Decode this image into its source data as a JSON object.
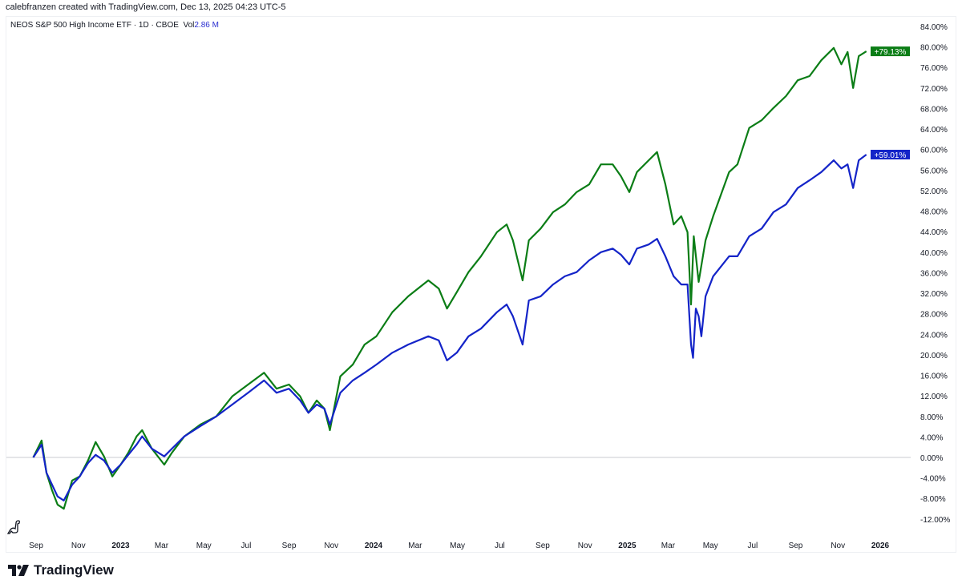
{
  "header": {
    "credit": "calebfranzen created with TradingView.com, Dec 13, 2025 04:23 UTC-5",
    "symbol_line": "NEOS S&P 500 High Income ETF · 1D · CBOE",
    "vol_label": "Vol",
    "vol_value": "2.86 M"
  },
  "footer": {
    "brand": "TradingView"
  },
  "icons": {
    "dino": "dinosaur-icon",
    "logo": "tradingview-logo"
  },
  "chart_data": {
    "type": "line",
    "title": "",
    "xlabel": "",
    "ylabel": "",
    "ylim": [
      -14,
      86
    ],
    "grid": false,
    "y_ticks": [
      "84.00%",
      "80.00%",
      "76.00%",
      "72.00%",
      "68.00%",
      "64.00%",
      "60.00%",
      "56.00%",
      "52.00%",
      "48.00%",
      "44.00%",
      "40.00%",
      "36.00%",
      "32.00%",
      "28.00%",
      "24.00%",
      "20.00%",
      "16.00%",
      "12.00%",
      "8.00%",
      "4.00%",
      "0.00%",
      "-4.00%",
      "-8.00%",
      "-12.00%"
    ],
    "y_tick_values": [
      84,
      80,
      76,
      72,
      68,
      64,
      60,
      56,
      52,
      48,
      44,
      40,
      36,
      32,
      28,
      24,
      20,
      16,
      12,
      8,
      4,
      0,
      -4,
      -8,
      -12
    ],
    "x_ticks": [
      {
        "label": "Sep",
        "date": "2022-09-01",
        "bold": false
      },
      {
        "label": "Nov",
        "date": "2022-11-01",
        "bold": false
      },
      {
        "label": "2023",
        "date": "2023-01-01",
        "bold": true
      },
      {
        "label": "Mar",
        "date": "2023-03-01",
        "bold": false
      },
      {
        "label": "May",
        "date": "2023-05-01",
        "bold": false
      },
      {
        "label": "Jul",
        "date": "2023-07-01",
        "bold": false
      },
      {
        "label": "Sep",
        "date": "2023-09-01",
        "bold": false
      },
      {
        "label": "Nov",
        "date": "2023-11-01",
        "bold": false
      },
      {
        "label": "2024",
        "date": "2024-01-01",
        "bold": true
      },
      {
        "label": "Mar",
        "date": "2024-03-01",
        "bold": false
      },
      {
        "label": "May",
        "date": "2024-05-01",
        "bold": false
      },
      {
        "label": "Jul",
        "date": "2024-07-01",
        "bold": false
      },
      {
        "label": "Sep",
        "date": "2024-09-01",
        "bold": false
      },
      {
        "label": "Nov",
        "date": "2024-11-01",
        "bold": false
      },
      {
        "label": "2025",
        "date": "2025-01-01",
        "bold": true
      },
      {
        "label": "Mar",
        "date": "2025-03-01",
        "bold": false
      },
      {
        "label": "May",
        "date": "2025-05-01",
        "bold": false
      },
      {
        "label": "Jul",
        "date": "2025-07-01",
        "bold": false
      },
      {
        "label": "Sep",
        "date": "2025-09-01",
        "bold": false
      },
      {
        "label": "Nov",
        "date": "2025-11-01",
        "bold": false
      },
      {
        "label": "2026",
        "date": "2026-01-01",
        "bold": true
      }
    ],
    "series": [
      {
        "color": "#0b7d16",
        "last_label": "+79.13%",
        "points": [
          [
            "2022-08-28",
            0
          ],
          [
            "2022-09-09",
            3.3
          ],
          [
            "2022-09-16",
            -3
          ],
          [
            "2022-09-24",
            -6.4
          ],
          [
            "2022-10-02",
            -9.2
          ],
          [
            "2022-10-11",
            -10
          ],
          [
            "2022-10-23",
            -4.5
          ],
          [
            "2022-11-03",
            -3.7
          ],
          [
            "2022-11-15",
            -0.6
          ],
          [
            "2022-11-26",
            3
          ],
          [
            "2022-12-08",
            0.2
          ],
          [
            "2022-12-20",
            -3.7
          ],
          [
            "2023-01-01",
            -1.4
          ],
          [
            "2023-01-12",
            0.9
          ],
          [
            "2023-01-24",
            4.1
          ],
          [
            "2023-02-01",
            5.3
          ],
          [
            "2023-02-15",
            1.7
          ],
          [
            "2023-03-05",
            -1.4
          ],
          [
            "2023-03-16",
            0.9
          ],
          [
            "2023-04-03",
            4.1
          ],
          [
            "2023-04-26",
            6.4
          ],
          [
            "2023-05-19",
            8
          ],
          [
            "2023-06-11",
            11.9
          ],
          [
            "2023-07-04",
            14.2
          ],
          [
            "2023-07-27",
            16.5
          ],
          [
            "2023-08-14",
            13.4
          ],
          [
            "2023-09-01",
            14.2
          ],
          [
            "2023-09-17",
            11.9
          ],
          [
            "2023-09-29",
            8.7
          ],
          [
            "2023-10-11",
            11.1
          ],
          [
            "2023-10-22",
            9.5
          ],
          [
            "2023-10-30",
            5.3
          ],
          [
            "2023-11-14",
            15.8
          ],
          [
            "2023-12-02",
            18.1
          ],
          [
            "2023-12-19",
            22
          ],
          [
            "2024-01-05",
            23.6
          ],
          [
            "2024-01-28",
            28.3
          ],
          [
            "2024-02-20",
            31.4
          ],
          [
            "2024-03-20",
            34.5
          ],
          [
            "2024-04-04",
            32.9
          ],
          [
            "2024-04-16",
            29
          ],
          [
            "2024-04-30",
            32.2
          ],
          [
            "2024-05-17",
            36.1
          ],
          [
            "2024-06-04",
            39.2
          ],
          [
            "2024-06-27",
            43.9
          ],
          [
            "2024-07-11",
            45.4
          ],
          [
            "2024-07-20",
            42.3
          ],
          [
            "2024-08-03",
            34.5
          ],
          [
            "2024-08-12",
            42.3
          ],
          [
            "2024-08-29",
            44.6
          ],
          [
            "2024-09-16",
            47.8
          ],
          [
            "2024-10-03",
            49.3
          ],
          [
            "2024-10-20",
            51.7
          ],
          [
            "2024-11-07",
            53.2
          ],
          [
            "2024-11-24",
            57.1
          ],
          [
            "2024-12-11",
            57.1
          ],
          [
            "2024-12-23",
            54.8
          ],
          [
            "2025-01-04",
            51.7
          ],
          [
            "2025-01-15",
            55.6
          ],
          [
            "2025-02-01",
            57.9
          ],
          [
            "2025-02-13",
            59.5
          ],
          [
            "2025-02-25",
            53.2
          ],
          [
            "2025-03-09",
            45.4
          ],
          [
            "2025-03-20",
            47
          ],
          [
            "2025-03-29",
            43.9
          ],
          [
            "2025-04-03",
            29.8
          ],
          [
            "2025-04-07",
            43.1
          ],
          [
            "2025-04-14",
            34.2
          ],
          [
            "2025-04-24",
            42.3
          ],
          [
            "2025-05-05",
            47
          ],
          [
            "2025-05-28",
            55.6
          ],
          [
            "2025-06-09",
            57.1
          ],
          [
            "2025-06-26",
            64.2
          ],
          [
            "2025-07-14",
            65.7
          ],
          [
            "2025-07-31",
            68.1
          ],
          [
            "2025-08-18",
            70.4
          ],
          [
            "2025-09-04",
            73.5
          ],
          [
            "2025-09-21",
            74.3
          ],
          [
            "2025-10-08",
            77.4
          ],
          [
            "2025-10-26",
            79.8
          ],
          [
            "2025-11-06",
            76.6
          ],
          [
            "2025-11-15",
            79
          ],
          [
            "2025-11-23",
            72
          ],
          [
            "2025-12-01",
            78.2
          ],
          [
            "2025-12-12",
            79.13
          ]
        ]
      },
      {
        "color": "#1424c8",
        "last_label": "+59.01%",
        "points": [
          [
            "2022-08-28",
            0
          ],
          [
            "2022-09-09",
            2.5
          ],
          [
            "2022-09-16",
            -3
          ],
          [
            "2022-09-24",
            -5.3
          ],
          [
            "2022-10-02",
            -7.6
          ],
          [
            "2022-10-11",
            -8.4
          ],
          [
            "2022-10-23",
            -5.3
          ],
          [
            "2022-11-03",
            -3.7
          ],
          [
            "2022-11-15",
            -1.1
          ],
          [
            "2022-11-26",
            0.5
          ],
          [
            "2022-12-08",
            -0.6
          ],
          [
            "2022-12-20",
            -3
          ],
          [
            "2023-01-01",
            -1.4
          ],
          [
            "2023-01-12",
            0.5
          ],
          [
            "2023-01-24",
            2.5
          ],
          [
            "2023-02-01",
            4.1
          ],
          [
            "2023-02-15",
            1.7
          ],
          [
            "2023-03-05",
            0.2
          ],
          [
            "2023-03-16",
            1.7
          ],
          [
            "2023-04-03",
            4.1
          ],
          [
            "2023-04-26",
            6.1
          ],
          [
            "2023-05-19",
            8
          ],
          [
            "2023-06-11",
            10.3
          ],
          [
            "2023-07-04",
            12.6
          ],
          [
            "2023-07-27",
            15
          ],
          [
            "2023-08-14",
            12.6
          ],
          [
            "2023-09-01",
            13.4
          ],
          [
            "2023-09-17",
            11.1
          ],
          [
            "2023-09-29",
            8.7
          ],
          [
            "2023-10-11",
            10.3
          ],
          [
            "2023-10-22",
            9.5
          ],
          [
            "2023-10-30",
            6.4
          ],
          [
            "2023-11-14",
            12.6
          ],
          [
            "2023-12-02",
            15
          ],
          [
            "2023-12-19",
            16.5
          ],
          [
            "2024-01-05",
            18.1
          ],
          [
            "2024-01-28",
            20.4
          ],
          [
            "2024-02-20",
            22
          ],
          [
            "2024-03-20",
            23.6
          ],
          [
            "2024-04-04",
            22.8
          ],
          [
            "2024-04-16",
            18.9
          ],
          [
            "2024-04-30",
            20.4
          ],
          [
            "2024-05-17",
            23.6
          ],
          [
            "2024-06-04",
            25.1
          ],
          [
            "2024-06-27",
            28.3
          ],
          [
            "2024-07-11",
            29.8
          ],
          [
            "2024-07-20",
            27.5
          ],
          [
            "2024-08-03",
            22
          ],
          [
            "2024-08-12",
            30.6
          ],
          [
            "2024-08-29",
            31.4
          ],
          [
            "2024-09-16",
            33.7
          ],
          [
            "2024-10-03",
            35.3
          ],
          [
            "2024-10-20",
            36.1
          ],
          [
            "2024-11-07",
            38.4
          ],
          [
            "2024-11-24",
            40
          ],
          [
            "2024-12-11",
            40.7
          ],
          [
            "2024-12-23",
            39.5
          ],
          [
            "2025-01-04",
            37.6
          ],
          [
            "2025-01-15",
            40.7
          ],
          [
            "2025-02-01",
            41.5
          ],
          [
            "2025-02-13",
            42.6
          ],
          [
            "2025-02-25",
            39.2
          ],
          [
            "2025-03-09",
            35.3
          ],
          [
            "2025-03-20",
            33.7
          ],
          [
            "2025-03-29",
            33.7
          ],
          [
            "2025-04-03",
            22
          ],
          [
            "2025-04-06",
            19.4
          ],
          [
            "2025-04-10",
            29
          ],
          [
            "2025-04-14",
            27.5
          ],
          [
            "2025-04-18",
            23.6
          ],
          [
            "2025-04-24",
            31.4
          ],
          [
            "2025-05-05",
            35.3
          ],
          [
            "2025-05-28",
            39.2
          ],
          [
            "2025-06-09",
            39.2
          ],
          [
            "2025-06-26",
            43.1
          ],
          [
            "2025-07-14",
            44.6
          ],
          [
            "2025-07-31",
            47.8
          ],
          [
            "2025-08-18",
            49.3
          ],
          [
            "2025-09-04",
            52.5
          ],
          [
            "2025-09-21",
            54
          ],
          [
            "2025-10-08",
            55.6
          ],
          [
            "2025-10-26",
            57.9
          ],
          [
            "2025-11-06",
            56.3
          ],
          [
            "2025-11-15",
            57.1
          ],
          [
            "2025-11-23",
            52.5
          ],
          [
            "2025-12-01",
            57.9
          ],
          [
            "2025-12-12",
            59.01
          ]
        ]
      }
    ]
  }
}
